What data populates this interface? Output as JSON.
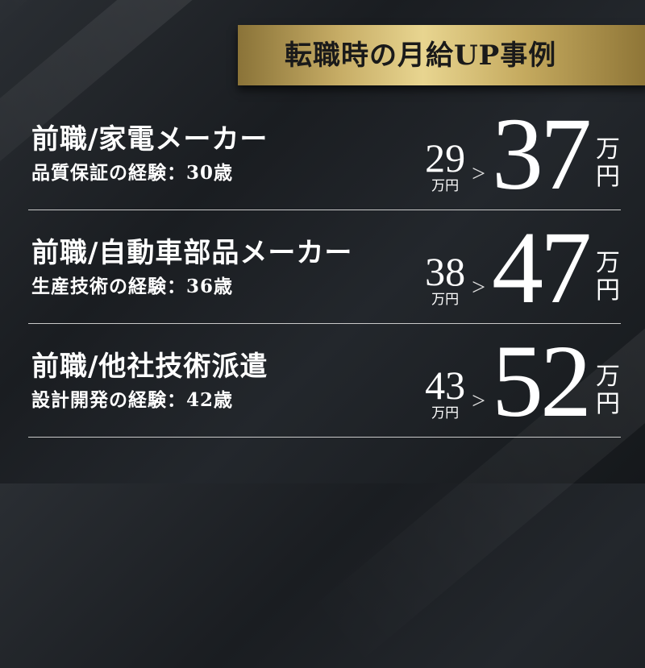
{
  "banner": {
    "title": "転職時の月給UP事例"
  },
  "unit": "万円",
  "unit_top": "万",
  "unit_bottom": "円",
  "arrow": ">",
  "cases": [
    {
      "title": "前職/家電メーカー",
      "detail": "品質保証の経験：30歳",
      "before": "29",
      "after": "37"
    },
    {
      "title": "前職/自動車部品メーカー",
      "detail": "生産技術の経験：36歳",
      "before": "38",
      "after": "47"
    },
    {
      "title": "前職/他社技術派遣",
      "detail": "設計開発の経験：42歳",
      "before": "43",
      "after": "52"
    }
  ],
  "colors": {
    "gold": "#d9c27a",
    "background": "#1e2226",
    "text": "#ffffff"
  }
}
